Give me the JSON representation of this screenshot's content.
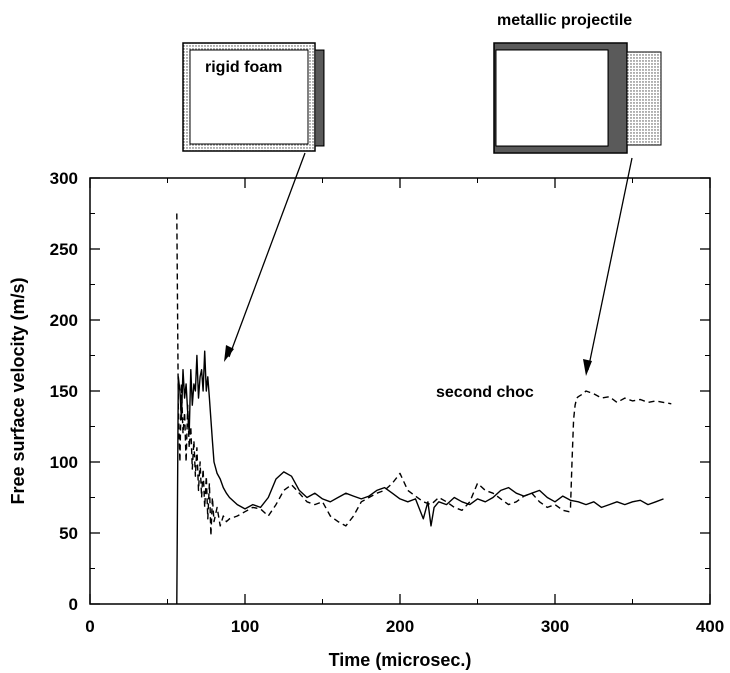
{
  "chart_data": {
    "type": "line",
    "title": "",
    "xlabel": "Time (microsec.)",
    "ylabel": "Free surface velocity (m/s)",
    "xlim": [
      0,
      400
    ],
    "ylim": [
      0,
      300
    ],
    "xticks": [
      0,
      100,
      200,
      300,
      400
    ],
    "yticks": [
      0,
      50,
      100,
      150,
      200,
      250,
      300
    ],
    "grid": false,
    "series": [
      {
        "style": "solid",
        "x": [
          56,
          57,
          58,
          59,
          60,
          61,
          62,
          63,
          64,
          65,
          66,
          67,
          68,
          69,
          70,
          71,
          72,
          73,
          74,
          75,
          76,
          77,
          78,
          79,
          80,
          82,
          84,
          86,
          88,
          90,
          95,
          100,
          105,
          110,
          115,
          120,
          125,
          130,
          135,
          140,
          145,
          150,
          155,
          160,
          165,
          170,
          175,
          180,
          185,
          190,
          195,
          200,
          205,
          210,
          215,
          218,
          220,
          222,
          225,
          230,
          235,
          240,
          245,
          250,
          255,
          260,
          265,
          270,
          275,
          280,
          285,
          290,
          295,
          300,
          305,
          310,
          315,
          320,
          325,
          330,
          335,
          340,
          345,
          350,
          355,
          360,
          365,
          370
        ],
        "values": [
          0,
          160,
          150,
          130,
          165,
          145,
          155,
          135,
          120,
          165,
          140,
          155,
          150,
          175,
          145,
          160,
          165,
          150,
          178,
          150,
          160,
          145,
          130,
          115,
          100,
          92,
          88,
          82,
          78,
          75,
          70,
          67,
          70,
          68,
          75,
          88,
          93,
          90,
          80,
          75,
          78,
          74,
          72,
          75,
          78,
          76,
          74,
          76,
          80,
          82,
          78,
          74,
          72,
          74,
          60,
          72,
          55,
          68,
          72,
          70,
          75,
          72,
          70,
          74,
          72,
          75,
          80,
          82,
          78,
          76,
          78,
          80,
          75,
          72,
          76,
          73,
          72,
          70,
          72,
          68,
          70,
          72,
          70,
          72,
          73,
          70,
          72,
          74
        ]
      },
      {
        "style": "dashed",
        "x": [
          56,
          57,
          58,
          59,
          60,
          61,
          62,
          63,
          64,
          65,
          66,
          67,
          68,
          69,
          70,
          71,
          72,
          73,
          74,
          75,
          76,
          77,
          78,
          79,
          80,
          82,
          84,
          86,
          88,
          90,
          95,
          100,
          105,
          110,
          115,
          120,
          125,
          130,
          135,
          140,
          145,
          150,
          155,
          160,
          165,
          170,
          175,
          180,
          185,
          190,
          195,
          200,
          205,
          210,
          215,
          220,
          225,
          230,
          235,
          240,
          245,
          250,
          255,
          260,
          265,
          270,
          275,
          280,
          285,
          290,
          295,
          300,
          305,
          309,
          310,
          311,
          312,
          313,
          314,
          315,
          318,
          320,
          325,
          330,
          335,
          340,
          345,
          350,
          355,
          360,
          365,
          370,
          375
        ],
        "values": [
          275,
          140,
          100,
          155,
          120,
          135,
          100,
          140,
          110,
          125,
          95,
          115,
          90,
          110,
          80,
          100,
          75,
          95,
          68,
          90,
          60,
          85,
          48,
          75,
          58,
          68,
          55,
          62,
          58,
          60,
          62,
          65,
          68,
          67,
          62,
          70,
          80,
          84,
          78,
          72,
          70,
          72,
          62,
          58,
          55,
          62,
          72,
          75,
          78,
          80,
          85,
          92,
          80,
          76,
          72,
          70,
          75,
          72,
          68,
          66,
          72,
          85,
          80,
          78,
          74,
          70,
          72,
          76,
          78,
          72,
          68,
          70,
          66,
          65,
          68,
          100,
          130,
          140,
          145,
          146,
          148,
          150,
          148,
          145,
          146,
          142,
          145,
          143,
          144,
          142,
          143,
          142,
          141
        ]
      }
    ],
    "annotations": [
      {
        "text": "rigid foam",
        "x": 90,
        "y": 157
      },
      {
        "text": "metallic projectile",
        "x": 312,
        "y": 155
      },
      {
        "text": "second choc",
        "x": 345,
        "y": 150
      }
    ]
  }
}
